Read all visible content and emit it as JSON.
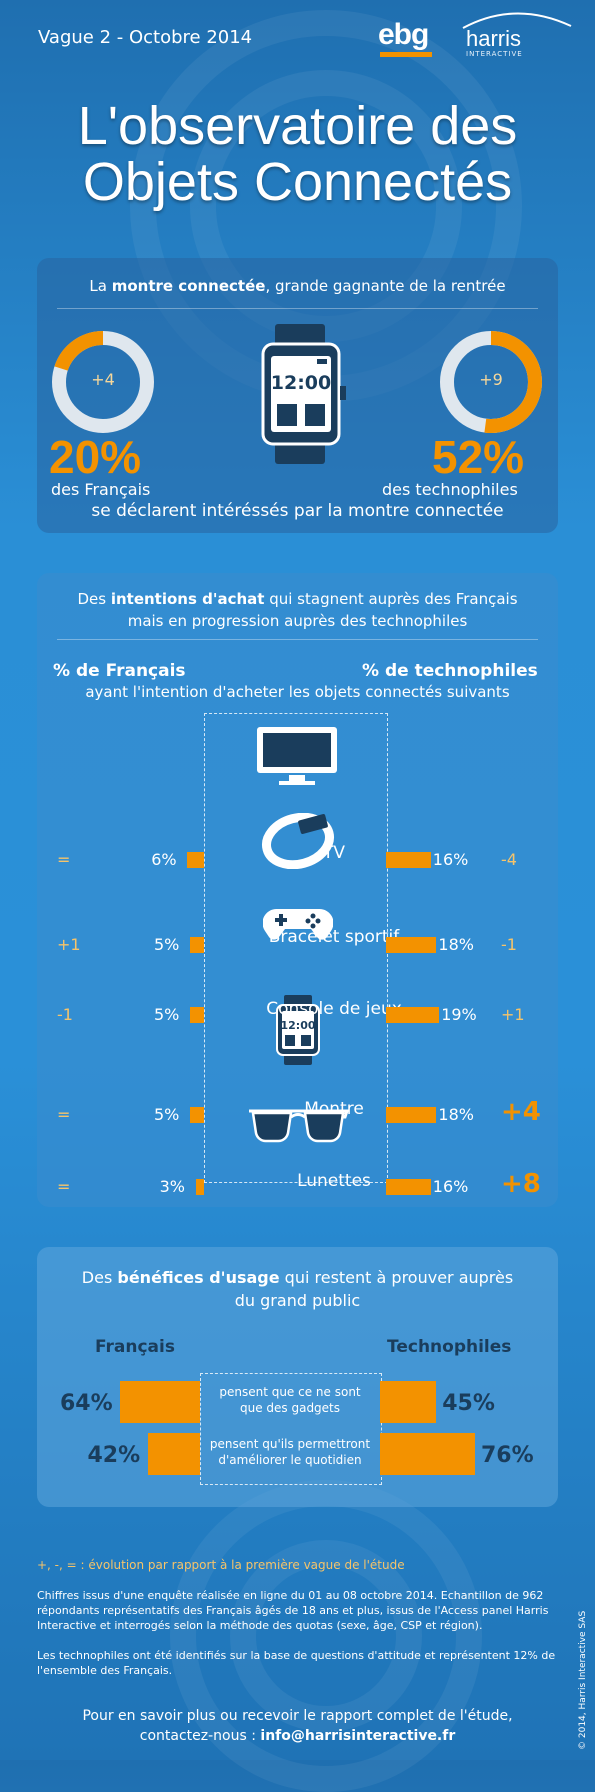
{
  "header": {
    "wave": "Vague 2 - Octobre 2014",
    "logo_ebg": "ebg",
    "logo_harris": "harris",
    "logo_harris_sub": "INTERACTIVE"
  },
  "title": {
    "line1": "L'observatoire des",
    "line2": "Objets Connectés"
  },
  "colors": {
    "accent": "#f39200",
    "panel": "#3a8ccd",
    "background": "#2a8fd6"
  },
  "section1": {
    "title_pre": "La ",
    "title_bold": "montre connectée",
    "title_post": ", grande gagnante de la rentrée",
    "left": {
      "delta": "+4",
      "pct": "20%",
      "label": "des Français"
    },
    "right": {
      "delta": "+9",
      "pct": "52%",
      "label": "des technophiles"
    },
    "watch_time": "12:00",
    "caption": "se déclarent intéréssés par la montre connectée"
  },
  "section2": {
    "title_line1_pre": "Des ",
    "title_line1_bold": "intentions d'achat",
    "title_line1_post": " qui stagnent auprès des Français",
    "title_line2": "mais en progression auprès des technophiles",
    "col_left": "% de Français",
    "col_right": "% de technophiles",
    "subtitle": "ayant l'intention d'acheter les objets connectés suivants",
    "watch_time": "12:00"
  },
  "chart_data": {
    "type": "bar",
    "categories": [
      "TV",
      "Bracelet sportif",
      "Console de jeux",
      "Montre",
      "Lunettes"
    ],
    "series": [
      {
        "name": "% de Français",
        "values": [
          6,
          5,
          5,
          5,
          3
        ],
        "labels": [
          "6%",
          "5%",
          "5%",
          "5%",
          "3%"
        ],
        "evolution": [
          "=",
          "+1",
          "-1",
          "=",
          "="
        ]
      },
      {
        "name": "% de technophiles",
        "values": [
          16,
          18,
          19,
          18,
          16
        ],
        "labels": [
          "16%",
          "18%",
          "19%",
          "18%",
          "16%"
        ],
        "evolution": [
          "-4",
          "-1",
          "+1",
          "+4",
          "+8"
        ]
      }
    ]
  },
  "section3": {
    "title_line1_pre": "Des ",
    "title_line1_bold": "bénéfices d'usage",
    "title_line1_post": " qui restent à prouver auprès",
    "title_line2": "du grand public",
    "col_left": "Français",
    "col_right": "Technophiles",
    "rows": [
      {
        "left_value": 64,
        "left": "64%",
        "text1": "pensent que ce ne sont",
        "text2": "que des gadgets",
        "right": "45%",
        "right_value": 45
      },
      {
        "left_value": 42,
        "left": "42%",
        "text1": "pensent qu'ils permettront",
        "text2": "d'améliorer le quotidien",
        "right": "76%",
        "right_value": 76
      }
    ]
  },
  "footer": {
    "legend": "+, -, = : évolution par rapport à la première vague de l'étude",
    "note1": "Chiffres issus d'une enquête réalisée en ligne du 01 au 08 octobre 2014. Echantillon de 962 répondants représentatifs des Français âgés de 18 ans et plus, issus de l'Access panel Harris Interactive et interrogés selon la méthode des quotas (sexe, âge, CSP et région).",
    "note2": "Les technophiles ont été identifiés sur la base de questions d'attitude et représentent 12% de l'ensemble des Français.",
    "cta1": "Pour en savoir plus ou recevoir le rapport complet de l'étude,",
    "cta2_pre": "contactez-nous : ",
    "cta2_email": "info@harrisinteractive.fr",
    "copyright": "© 2014, Harris Interactive SAS"
  }
}
